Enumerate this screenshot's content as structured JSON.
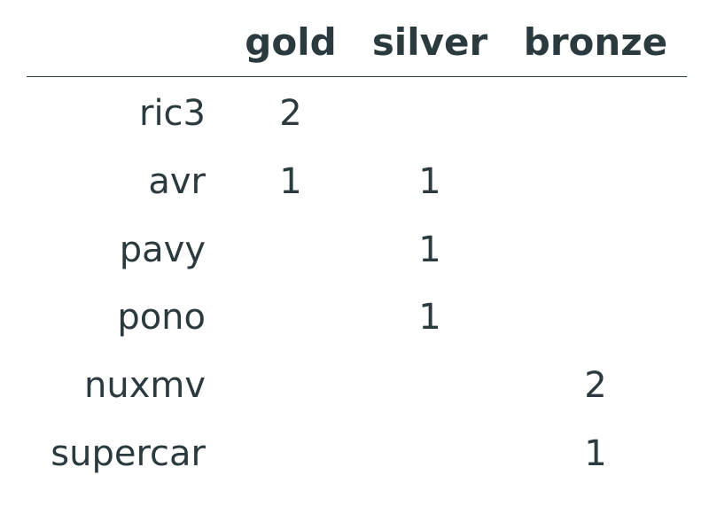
{
  "columns": [
    "gold",
    "silver",
    "bronze"
  ],
  "rows": [
    {
      "name": "ric3",
      "gold": "2",
      "silver": "",
      "bronze": ""
    },
    {
      "name": "avr",
      "gold": "1",
      "silver": "1",
      "bronze": ""
    },
    {
      "name": "pavy",
      "gold": "",
      "silver": "1",
      "bronze": ""
    },
    {
      "name": "pono",
      "gold": "",
      "silver": "1",
      "bronze": ""
    },
    {
      "name": "nuxmv",
      "gold": "",
      "silver": "",
      "bronze": "2"
    },
    {
      "name": "supercar",
      "gold": "",
      "silver": "",
      "bronze": "1"
    }
  ],
  "colors": {
    "text": "#2b3a3f",
    "background": "#ffffff"
  }
}
